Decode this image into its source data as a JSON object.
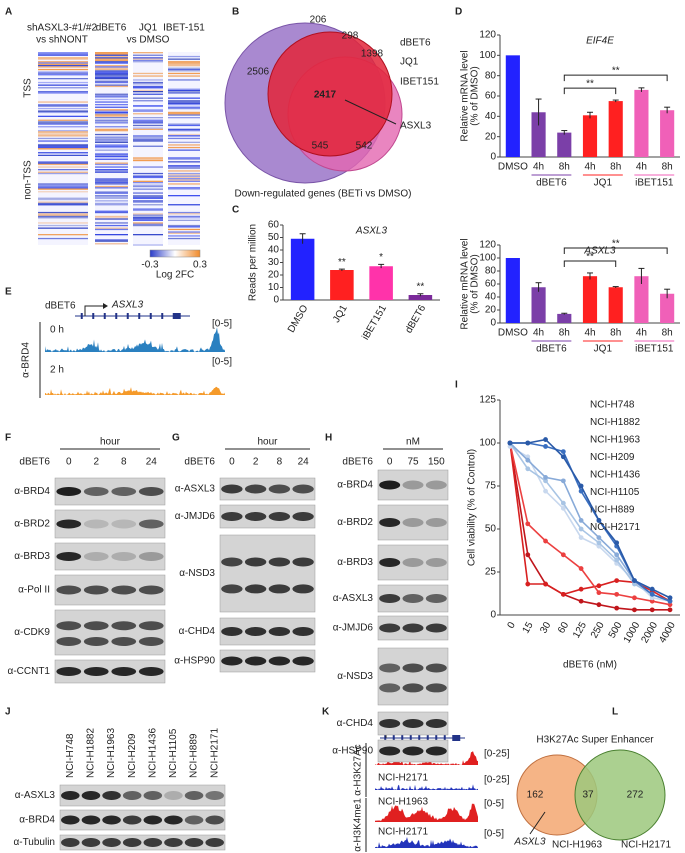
{
  "panel_letters": [
    "A",
    "B",
    "C",
    "D",
    "E",
    "F",
    "G",
    "H",
    "I",
    "J",
    "K",
    "L"
  ],
  "heatmap_a": {
    "header": [
      "shASXL3-#1/#2",
      "vs shNONT"
    ],
    "columns": [
      "dBET6",
      "JQ1",
      "IBET-151"
    ],
    "column_note": "vs DMSO",
    "row_groups": [
      "TSS",
      "non-TSS"
    ],
    "colorbar_ticks": [
      -0.3,
      0.3
    ],
    "colorbar_label": "Log 2FC"
  },
  "venn_b": {
    "counts": [
      2506,
      206,
      298,
      1398,
      2417,
      545,
      542
    ],
    "sets": [
      "dBET6",
      "JQ1",
      "IBET151"
    ],
    "gene": "ASXL3",
    "caption": "Down-regulated genes  (BETi vs DMSO)"
  },
  "chart_data": [
    {
      "type": "bar",
      "title": "ASXL3",
      "y_label": [
        "Reads per million"
      ],
      "categories": [
        "DMSO",
        "JQ1",
        "iBET151",
        "dBET6"
      ],
      "values": [
        49,
        24,
        27,
        4
      ],
      "errors": [
        4,
        0.7,
        1.5,
        1
      ],
      "colors": [
        "#2222ff",
        "#ff2020",
        "#ff33aa",
        "#7b2a9a"
      ],
      "significance": [
        null,
        "**",
        "*",
        "**"
      ],
      "ylim": [
        0,
        60
      ],
      "yticks": [
        0,
        10,
        20,
        30,
        40,
        50,
        60
      ]
    },
    {
      "type": "bar",
      "title": "EIF4E",
      "y_label": [
        "Relative mRNA level",
        "(% of DMSO)"
      ],
      "categories": [
        "DMSO",
        "4h",
        "8h",
        "4h",
        "8h",
        "4h",
        "8h"
      ],
      "category_groups": [
        null,
        "dBET6",
        "dBET6",
        "JQ1",
        "JQ1",
        "iBET151",
        "iBET151"
      ],
      "values": [
        100,
        44,
        24,
        41,
        55,
        66,
        46
      ],
      "errors": [
        0,
        13,
        2,
        3,
        1,
        2,
        3
      ],
      "colors": [
        "#2222ff",
        "#7b3fa8",
        "#7b3fa8",
        "#ff2020",
        "#ff2020",
        "#f060b8",
        "#f060b8"
      ],
      "brackets": [
        {
          "from": 2,
          "to": 4,
          "label": "**"
        },
        {
          "from": 2,
          "to": 6,
          "label": "**"
        }
      ],
      "ylim": [
        0,
        120
      ],
      "yticks": [
        0,
        20,
        40,
        60,
        80,
        100,
        120
      ]
    },
    {
      "type": "bar",
      "title": "ASXL3",
      "y_label": [
        "Relative mRNA level",
        "(% of DMSO)"
      ],
      "categories": [
        "DMSO",
        "4h",
        "8h",
        "4h",
        "8h",
        "4h",
        "8h"
      ],
      "category_groups": [
        null,
        "dBET6",
        "dBET6",
        "JQ1",
        "JQ1",
        "iBET151",
        "iBET151"
      ],
      "values": [
        100,
        55,
        14,
        72,
        55,
        72,
        45
      ],
      "errors": [
        0,
        7,
        1,
        5,
        1,
        12,
        7
      ],
      "colors": [
        "#2222ff",
        "#7b3fa8",
        "#7b3fa8",
        "#ff2020",
        "#ff2020",
        "#f060b8",
        "#f060b8"
      ],
      "brackets": [
        {
          "from": 2,
          "to": 4,
          "label": "**"
        },
        {
          "from": 2,
          "to": 6,
          "label": "**"
        }
      ],
      "ylim": [
        0,
        120
      ],
      "yticks": [
        0,
        20,
        40,
        60,
        80,
        100,
        120
      ]
    },
    {
      "type": "line",
      "x_label": "dBET6 (nM)",
      "y_label": [
        "Cell viability (% of Control)"
      ],
      "categories": [
        "0",
        "15",
        "30",
        "60",
        "125",
        "250",
        "500",
        "1000",
        "2000",
        "4000"
      ],
      "ylim": [
        0,
        125
      ],
      "yticks": [
        0,
        25,
        50,
        75,
        100,
        125
      ],
      "legend": "upper right",
      "series": [
        {
          "name": "NCI-H748",
          "color": "#c0161c",
          "values": [
            100,
            35,
            18,
            12,
            8,
            6,
            4,
            3,
            3,
            3
          ]
        },
        {
          "name": "NCI-H1882",
          "color": "#d82020",
          "values": [
            100,
            18,
            18,
            12,
            15,
            17,
            20,
            19,
            14,
            8
          ]
        },
        {
          "name": "NCI-H1963",
          "color": "#ec4040",
          "values": [
            100,
            53,
            43,
            35,
            27,
            13,
            12,
            10,
            8,
            6
          ]
        },
        {
          "name": "NCI-H209",
          "color": "#c8d8ee",
          "values": [
            98,
            92,
            72,
            62,
            45,
            40,
            30,
            20,
            10,
            8
          ]
        },
        {
          "name": "NCI-H1436",
          "color": "#a8c4e4",
          "values": [
            100,
            85,
            78,
            65,
            50,
            42,
            32,
            18,
            12,
            8
          ]
        },
        {
          "name": "NCI-H1105",
          "color": "#88aad8",
          "values": [
            100,
            90,
            80,
            78,
            55,
            45,
            35,
            20,
            15,
            10
          ]
        },
        {
          "name": "NCI-H889",
          "color": "#3a6fc0",
          "values": [
            100,
            100,
            98,
            95,
            72,
            55,
            40,
            20,
            12,
            8
          ]
        },
        {
          "name": "NCI-H2171",
          "color": "#2a5aa8",
          "values": [
            100,
            100,
            102,
            92,
            75,
            55,
            42,
            20,
            15,
            10
          ]
        }
      ]
    }
  ],
  "track_e": {
    "drug": "dBET6",
    "gene": "ASXL3",
    "antibody": "α-BRD4",
    "tracks": [
      {
        "label": "0 h",
        "range": "[0-5]"
      },
      {
        "label": "2 h",
        "range": "[0-5]"
      }
    ]
  },
  "blot_f": {
    "header": "hour",
    "treatment": "dBET6",
    "lanes": [
      "0",
      "2",
      "8",
      "24"
    ],
    "rows": [
      "α-BRD4",
      "α-BRD2",
      "α-BRD3",
      "α-Pol II",
      "α-CDK9",
      "α-CCNT1"
    ]
  },
  "blot_g": {
    "header": "hour",
    "treatment": "dBET6",
    "lanes": [
      "0",
      "2",
      "8",
      "24"
    ],
    "rows": [
      "α-ASXL3",
      "α-JMJD6",
      "α-NSD3",
      "α-CHD4",
      "α-HSP90"
    ]
  },
  "blot_h": {
    "header": "nM",
    "treatment": "dBET6",
    "lanes": [
      "0",
      "75",
      "150"
    ],
    "rows": [
      "α-BRD4",
      "α-BRD2",
      "α-BRD3",
      "α-ASXL3",
      "α-JMJD6",
      "α-NSD3",
      "α-CHD4",
      "α-HSP90"
    ]
  },
  "blot_j": {
    "lanes": [
      "NCI-H748",
      "NCI-H1882",
      "NCI-H1963",
      "NCI-H209",
      "NCI-H1436",
      "NCI-H1105",
      "NCI-H889",
      "NCI-H2171"
    ],
    "rows": [
      "α-ASXL3",
      "α-BRD4",
      "α-Tubulin"
    ]
  },
  "track_k": {
    "gene": "ASXL3",
    "groups": [
      {
        "antibody": "α-H3K27Ac",
        "tracks": [
          {
            "label": "NCI-H1963",
            "range": "[0-25]"
          },
          {
            "label": "NCI-H2171",
            "range": "[0-25]"
          }
        ]
      },
      {
        "antibody": "α-H3K4me1",
        "tracks": [
          {
            "label": "NCI-H1963",
            "range": "[0-5]"
          },
          {
            "label": "NCI-H2171",
            "range": "[0-5]"
          }
        ]
      }
    ]
  },
  "venn_l": {
    "title": "H3K27Ac Super Enhancer",
    "counts": [
      162,
      37,
      272
    ],
    "gene": "ASXL3",
    "sets": [
      "NCI-H1963",
      "NCI-H2171"
    ]
  }
}
